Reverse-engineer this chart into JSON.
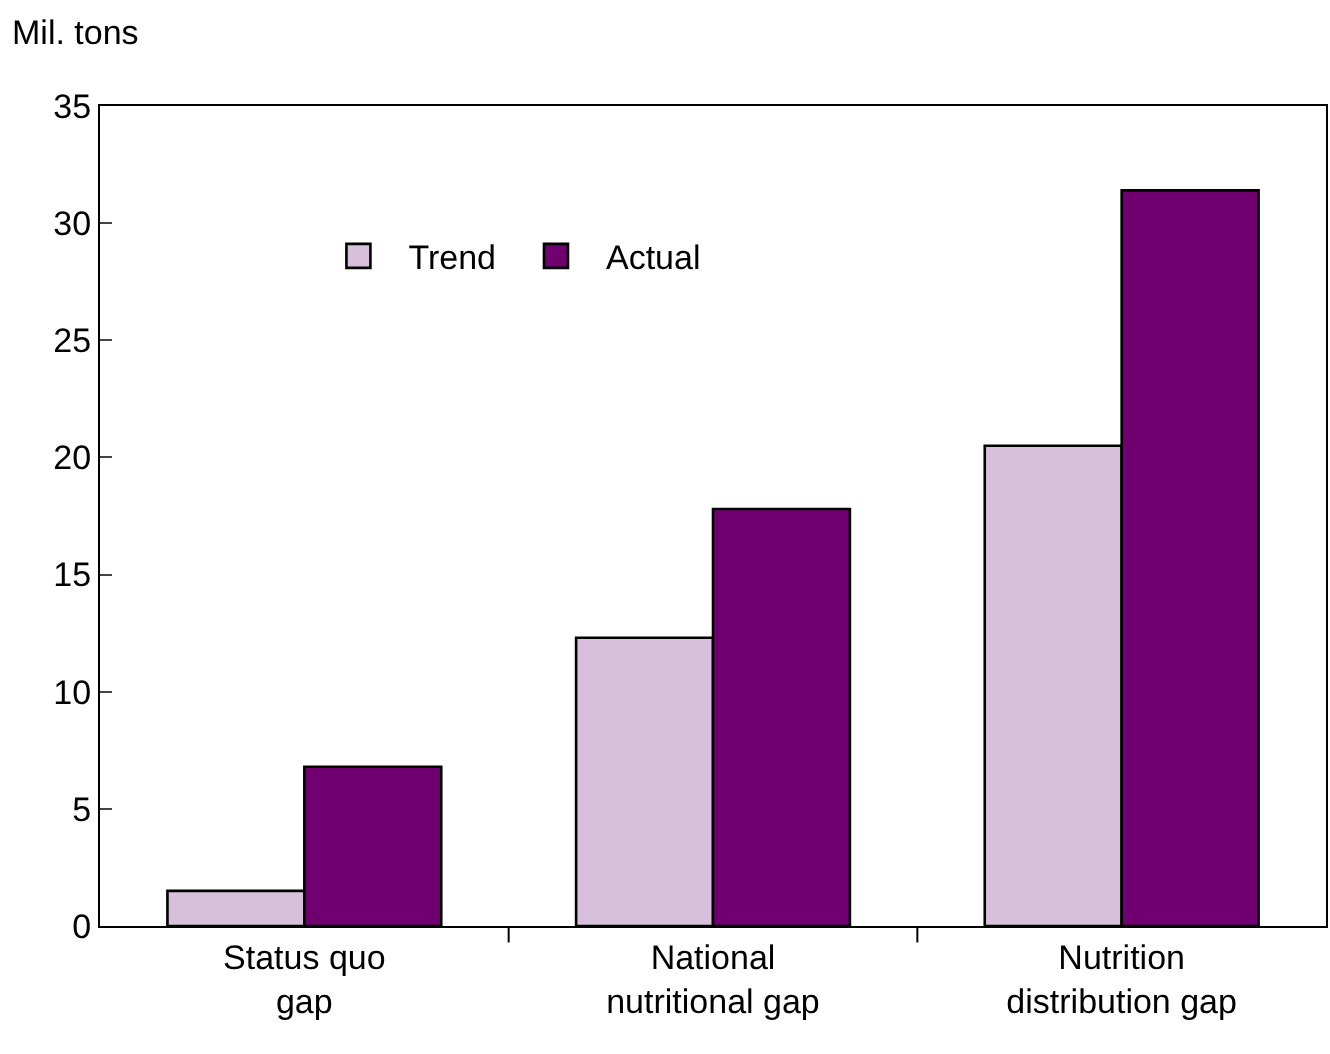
{
  "chart_data": {
    "type": "bar",
    "ylabel": "Mil. tons",
    "categories": [
      "Status quo\ngap",
      "National\nnutritional gap",
      "Nutrition\ndistribution gap"
    ],
    "series": [
      {
        "name": "Trend",
        "color": "#d8c0dc",
        "values": [
          1.5,
          12.3,
          20.5
        ]
      },
      {
        "name": "Actual",
        "color": "#700070",
        "values": [
          6.8,
          17.8,
          31.4
        ]
      }
    ],
    "ylim": [
      0,
      35
    ],
    "yticks": [
      0,
      5,
      10,
      15,
      20,
      25,
      30,
      35
    ],
    "legend": "top left"
  }
}
